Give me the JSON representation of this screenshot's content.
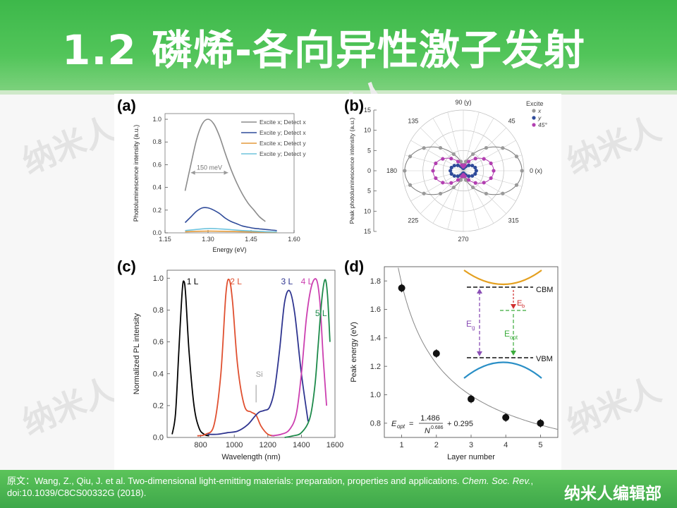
{
  "slide": {
    "title": "1.2 磷烯-各向异性激子发射",
    "watermark": "纳米人",
    "citation_prefix": "原文：Wang, Z., Qiu, J. et al. Two-dimensional light-emitting materials: preparation, properties and applications. ",
    "citation_journal": "Chem. Soc. Rev.",
    "citation_suffix": ", doi:10.1039/C8CS00332G (2018).",
    "editor": "纳米人编辑部"
  },
  "chart_data": [
    {
      "panel": "(a)",
      "type": "line",
      "xlabel": "Energy (eV)",
      "ylabel": "Photoluminescence intensity (a.u.)",
      "xlim": [
        1.15,
        1.6
      ],
      "ylim": [
        0,
        1.05
      ],
      "xticks": [
        "1.15",
        "1.30",
        "1.45",
        "1.60"
      ],
      "yticks": [
        "0.0",
        "0.2",
        "0.4",
        "0.6",
        "0.8",
        "1.0"
      ],
      "annotation": "150 meV",
      "series": [
        {
          "name": "Excite x; Detect x",
          "color": "#8c8c8c",
          "x": [
            1.22,
            1.24,
            1.26,
            1.28,
            1.3,
            1.32,
            1.34,
            1.36,
            1.38,
            1.4,
            1.42,
            1.44,
            1.46,
            1.48,
            1.5
          ],
          "y": [
            0.37,
            0.6,
            0.82,
            0.96,
            1.0,
            0.96,
            0.85,
            0.7,
            0.56,
            0.44,
            0.34,
            0.26,
            0.2,
            0.14,
            0.1
          ]
        },
        {
          "name": "Excite y; Detect x",
          "color": "#2f4b9a",
          "x": [
            1.22,
            1.24,
            1.26,
            1.28,
            1.3,
            1.32,
            1.34,
            1.36,
            1.38,
            1.4,
            1.42,
            1.44,
            1.46,
            1.48,
            1.5,
            1.52,
            1.54
          ],
          "y": [
            0.09,
            0.14,
            0.19,
            0.22,
            0.22,
            0.2,
            0.17,
            0.13,
            0.1,
            0.08,
            0.06,
            0.05,
            0.04,
            0.035,
            0.03,
            0.025,
            0.02
          ]
        },
        {
          "name": "Excite x; Detect y",
          "color": "#e39a3b",
          "x": [
            1.22,
            1.3,
            1.38,
            1.46,
            1.54
          ],
          "y": [
            0.01,
            0.015,
            0.012,
            0.008,
            0.005
          ]
        },
        {
          "name": "Excite y; Detect y",
          "color": "#6fc3dc",
          "x": [
            1.22,
            1.26,
            1.3,
            1.34,
            1.38,
            1.42,
            1.46,
            1.5,
            1.54
          ],
          "y": [
            0.02,
            0.03,
            0.038,
            0.035,
            0.028,
            0.02,
            0.015,
            0.01,
            0.008
          ]
        }
      ]
    },
    {
      "panel": "(b)",
      "type": "scatter",
      "polar": true,
      "ylabel": "Peak photoluminescence intensity (a.u.)",
      "yticks": [
        "15",
        "10",
        "5",
        "0",
        "5",
        "10",
        "15"
      ],
      "angle_labels": [
        "90 (y)",
        "45",
        "0 (x)",
        "315",
        "270",
        "225",
        "180",
        "135"
      ],
      "legend_title": "Excite",
      "series": [
        {
          "name": "x",
          "color": "#9a9a9a",
          "amplitude": 14.5,
          "residual": 1.5
        },
        {
          "name": "y",
          "color": "#2f4b9a",
          "amplitude": 3.2,
          "residual": 0.6
        },
        {
          "name": "45°",
          "color": "#b23fb0",
          "amplitude": 7.5,
          "residual": 1.0
        }
      ]
    },
    {
      "panel": "(c)",
      "type": "line",
      "xlabel": "Wavelength (nm)",
      "ylabel": "Normalized PL intensity",
      "xlim": [
        600,
        1600
      ],
      "ylim": [
        0,
        1.05
      ],
      "xticks": [
        "800",
        "1000",
        "1200",
        "1400",
        "1600"
      ],
      "yticks": [
        "0.0",
        "0.2",
        "0.4",
        "0.6",
        "0.8",
        "1.0"
      ],
      "annotation": "Si",
      "series": [
        {
          "name": "1 L",
          "color": "#000000",
          "x": [
            630,
            650,
            670,
            690,
            700,
            710,
            730,
            760,
            790,
            820,
            850
          ],
          "y": [
            0.02,
            0.15,
            0.55,
            0.92,
            0.98,
            0.9,
            0.55,
            0.2,
            0.06,
            0.02,
            0.01
          ]
        },
        {
          "name": "2 L",
          "color": "#e05030",
          "x": [
            780,
            830,
            880,
            920,
            950,
            970,
            990,
            1020,
            1060,
            1100,
            1130,
            1160,
            1200,
            1240
          ],
          "y": [
            0.01,
            0.02,
            0.08,
            0.4,
            0.9,
            0.99,
            0.85,
            0.45,
            0.2,
            0.16,
            0.14,
            0.07,
            0.02,
            0.01
          ]
        },
        {
          "name": "3 L",
          "color": "#2f3590",
          "x": [
            840,
            900,
            960,
            1020,
            1080,
            1120,
            1150,
            1180,
            1210,
            1240,
            1270,
            1300,
            1330,
            1360,
            1400,
            1440
          ],
          "y": [
            0.02,
            0.02,
            0.03,
            0.04,
            0.08,
            0.13,
            0.16,
            0.17,
            0.19,
            0.3,
            0.55,
            0.85,
            0.92,
            0.78,
            0.4,
            0.1
          ]
        },
        {
          "name": "4 L",
          "color": "#cc3fb0",
          "x": [
            1220,
            1280,
            1330,
            1370,
            1400,
            1430,
            1460,
            1490,
            1510,
            1530,
            1550
          ],
          "y": [
            0.01,
            0.02,
            0.05,
            0.15,
            0.4,
            0.75,
            0.95,
            0.99,
            0.85,
            0.5,
            0.2
          ]
        },
        {
          "name": "5 L",
          "color": "#1d8a4a",
          "x": [
            1300,
            1350,
            1400,
            1450,
            1480,
            1500,
            1520,
            1540,
            1555,
            1570
          ],
          "y": [
            0.0,
            0.01,
            0.03,
            0.12,
            0.32,
            0.58,
            0.85,
            0.99,
            0.9,
            0.6
          ]
        }
      ]
    },
    {
      "panel": "(d)",
      "type": "scatter",
      "xlabel": "Layer number",
      "ylabel": "Peak energy (eV)",
      "xlim": [
        0.5,
        5.5
      ],
      "ylim": [
        0.7,
        1.9
      ],
      "xticks": [
        "1",
        "2",
        "3",
        "4",
        "5"
      ],
      "yticks": [
        "0.8",
        "1.0",
        "1.2",
        "1.4",
        "1.6",
        "1.8"
      ],
      "x": [
        1,
        2,
        3,
        4,
        5
      ],
      "y": [
        1.75,
        1.29,
        0.97,
        0.84,
        0.8
      ],
      "fit": {
        "A": 1.486,
        "n": 0.686,
        "c": 0.295
      },
      "equation": {
        "lhs": "E",
        "lhs_sub": "opt",
        "numerator": "1.486",
        "denominator": "N",
        "exponent": "0.686",
        "constant": "+ 0.295"
      },
      "inset_labels": {
        "cbm": "CBM",
        "vbm": "VBM",
        "eg": "E",
        "eg_sub": "g",
        "eb": "E",
        "eb_sub": "b",
        "eopt": "E",
        "eopt_sub": "opt"
      }
    }
  ]
}
